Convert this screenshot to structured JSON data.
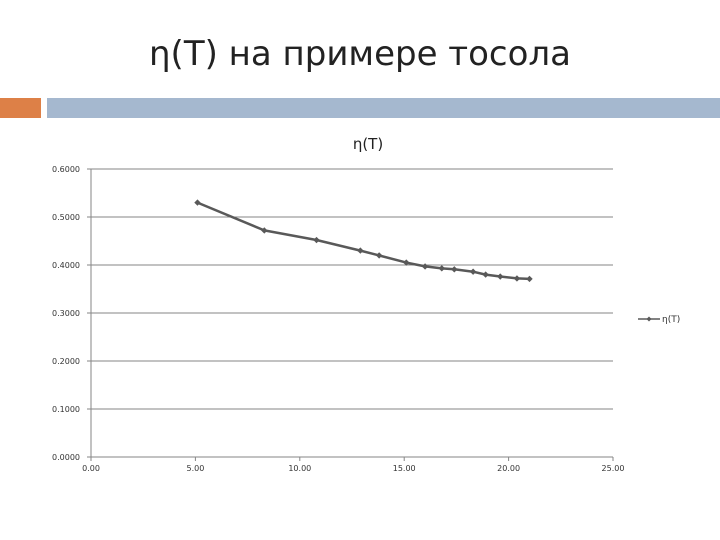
{
  "slide": {
    "title": "η(T) на примере тосола",
    "accent_colors": {
      "square": "#dd8047",
      "bar": "#a5b8cf"
    }
  },
  "chart_data": {
    "type": "line",
    "title": "η(T)",
    "xlabel": "",
    "ylabel": "",
    "xlim": [
      0,
      25
    ],
    "ylim": [
      0,
      0.6
    ],
    "x_ticks": [
      "0.00",
      "5.00",
      "10.00",
      "15.00",
      "20.00",
      "25.00"
    ],
    "y_ticks": [
      "0.0000",
      "0.1000",
      "0.2000",
      "0.3000",
      "0.4000",
      "0.5000",
      "0.6000"
    ],
    "grid": "horizontal",
    "legend_position": "right",
    "series": [
      {
        "name": "η(T)",
        "color": "#595959",
        "marker": "diamond",
        "points": [
          {
            "x": 5.1,
            "y": 0.53
          },
          {
            "x": 8.3,
            "y": 0.472
          },
          {
            "x": 10.8,
            "y": 0.452
          },
          {
            "x": 12.9,
            "y": 0.43
          },
          {
            "x": 13.8,
            "y": 0.42
          },
          {
            "x": 15.1,
            "y": 0.405
          },
          {
            "x": 16.0,
            "y": 0.397
          },
          {
            "x": 16.8,
            "y": 0.393
          },
          {
            "x": 17.4,
            "y": 0.391
          },
          {
            "x": 18.3,
            "y": 0.386
          },
          {
            "x": 18.9,
            "y": 0.38
          },
          {
            "x": 19.6,
            "y": 0.376
          },
          {
            "x": 20.4,
            "y": 0.372
          },
          {
            "x": 21.0,
            "y": 0.371
          }
        ]
      }
    ]
  }
}
